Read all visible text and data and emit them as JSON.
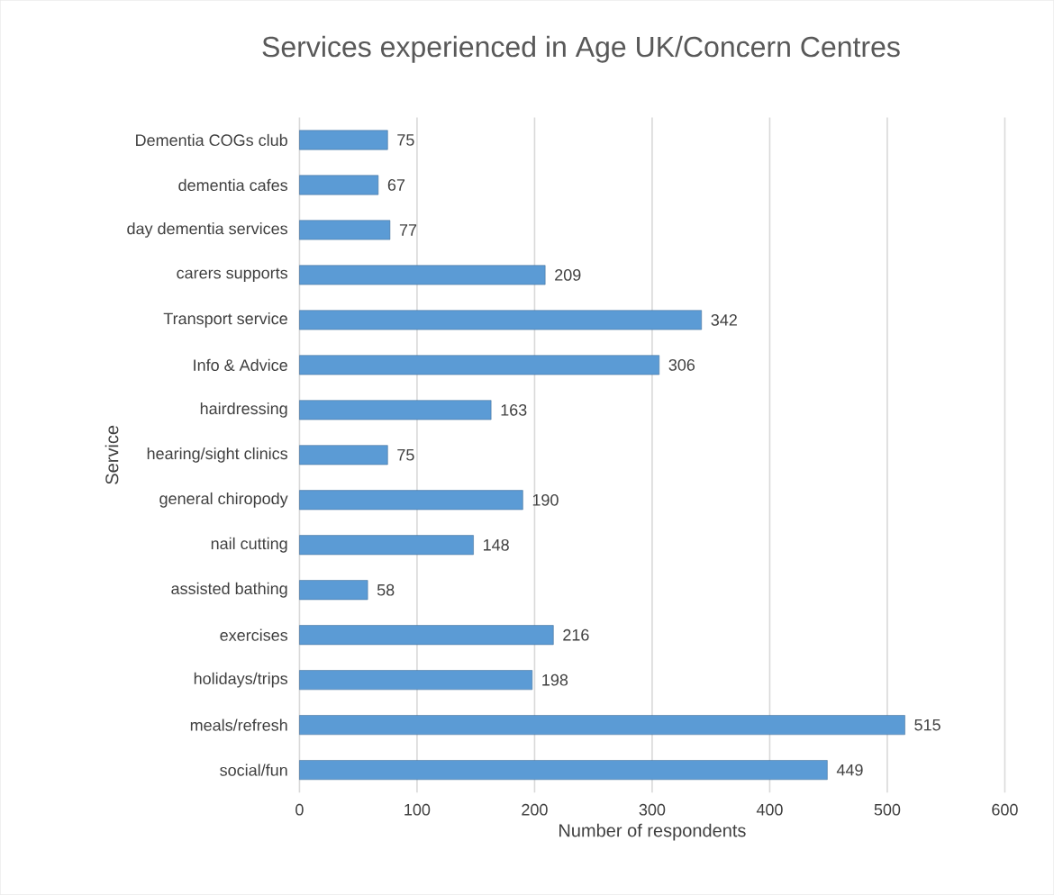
{
  "chart_data": {
    "type": "bar",
    "orientation": "horizontal",
    "title": "Services experienced in Age UK/Concern Centres",
    "xlabel": "Number of respondents",
    "ylabel": "Service",
    "categories": [
      "Dementia COGs club",
      "dementia cafes",
      "day dementia services",
      "carers supports",
      "Transport service",
      "Info & Advice",
      "hairdressing",
      "hearing/sight clinics",
      "general chiropody",
      "nail cutting",
      "assisted bathing",
      "exercises",
      "holidays/trips",
      "meals/refresh",
      "social/fun"
    ],
    "values": [
      75,
      67,
      77,
      209,
      342,
      306,
      163,
      75,
      190,
      148,
      58,
      216,
      198,
      515,
      449
    ],
    "color": "#5b9bd5",
    "xlim": [
      0,
      600
    ],
    "xticks": [
      0,
      100,
      200,
      300,
      400,
      500,
      600
    ],
    "grid": "x",
    "data_labels": true
  }
}
